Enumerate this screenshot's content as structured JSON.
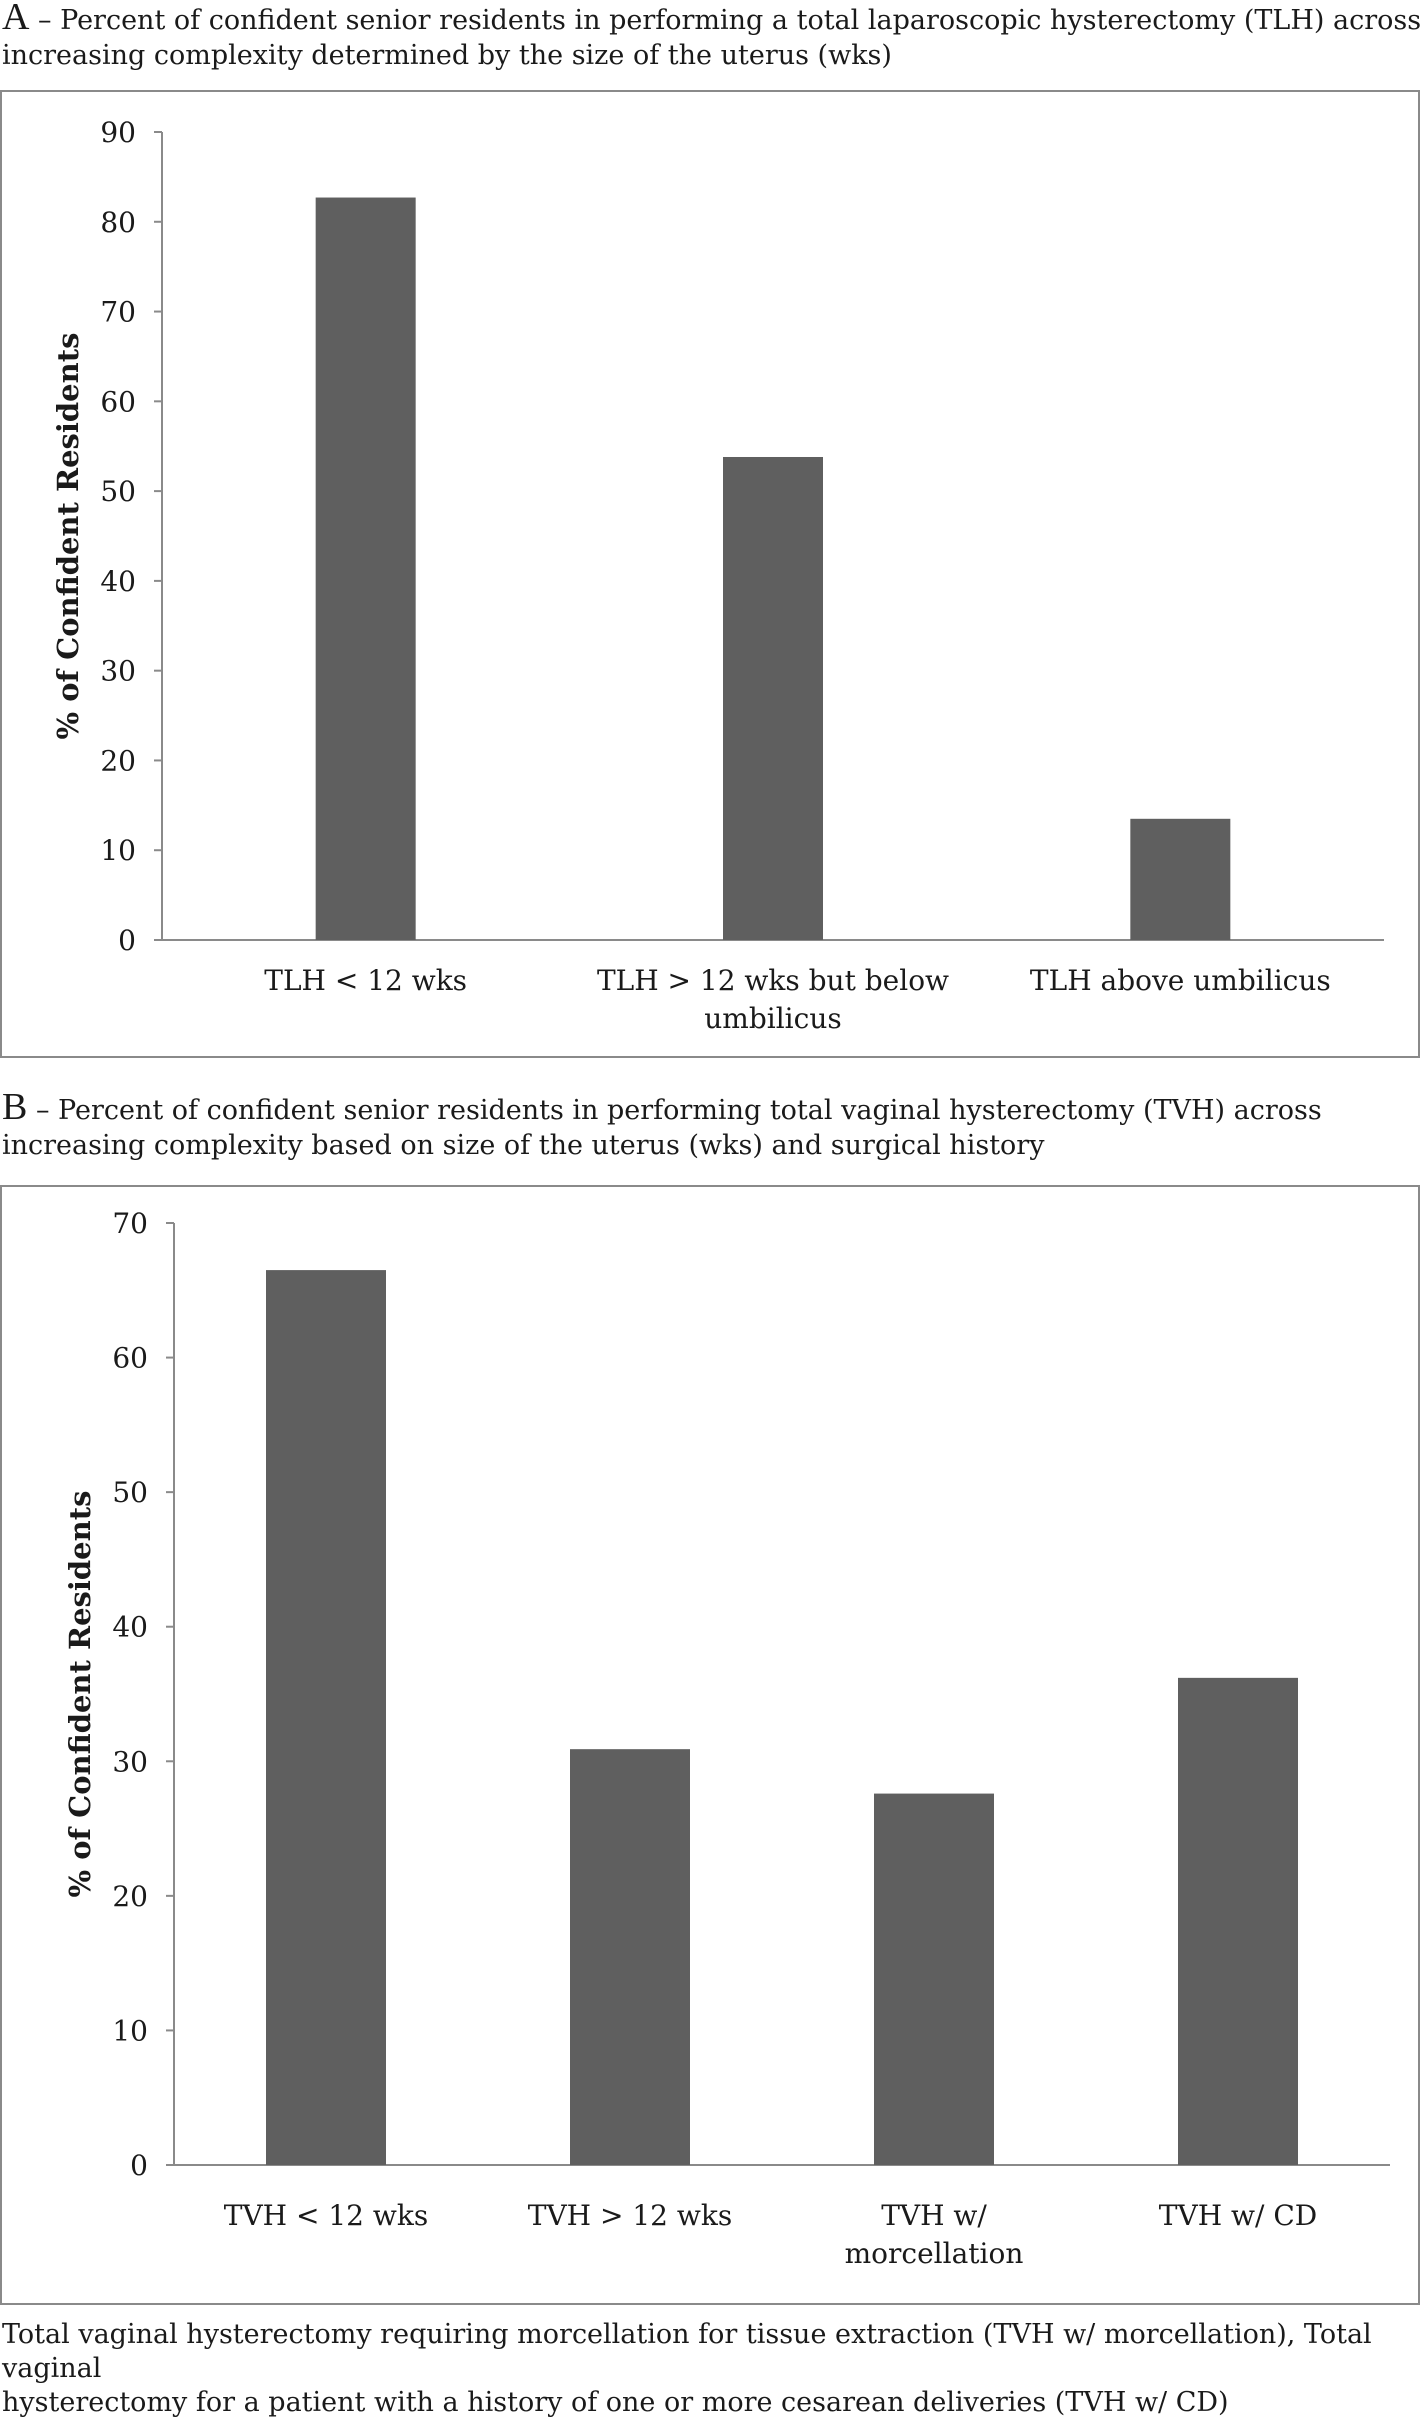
{
  "chart_data": [
    {
      "id": "A",
      "type": "bar",
      "caption_letter": "A",
      "caption_line1": " – Percent of confident senior residents in performing a total laparoscopic hysterectomy (TLH) across",
      "caption_line2": "increasing complexity determined by the size of the uterus (wks)",
      "ylabel": "% of Confident Residents",
      "xlabel": "",
      "ylim": [
        0,
        90
      ],
      "yticks": [
        0,
        10,
        20,
        30,
        40,
        50,
        60,
        70,
        80,
        90
      ],
      "categories": [
        [
          "TLH < 12 wks"
        ],
        [
          "TLH > 12 wks but below",
          "umbilicus"
        ],
        [
          "TLH above umbilicus"
        ]
      ],
      "values": [
        82.7,
        53.8,
        13.5
      ],
      "grid": false,
      "legend": "none",
      "bar_color": "#5f5f5f"
    },
    {
      "id": "B",
      "type": "bar",
      "caption_letter": "B",
      "caption_line1": " – Percent of confident senior residents in performing total vaginal hysterectomy (TVH) across",
      "caption_line2": "increasing complexity based on size of the uterus (wks) and surgical history",
      "ylabel": "% of Confident Residents",
      "xlabel": "",
      "ylim": [
        0,
        70
      ],
      "yticks": [
        0,
        10,
        20,
        30,
        40,
        50,
        60,
        70
      ],
      "categories": [
        [
          "TVH < 12 wks"
        ],
        [
          "TVH > 12 wks"
        ],
        [
          "TVH w/",
          "morcellation"
        ],
        [
          "TVH w/ CD"
        ]
      ],
      "values": [
        66.5,
        30.9,
        27.6,
        36.2
      ],
      "grid": false,
      "legend": "none",
      "bar_color": "#5f5f5f"
    }
  ],
  "footnote": {
    "line1": "Total vaginal hysterectomy requiring morcellation for tissue extraction (TVH w/ morcellation), Total vaginal",
    "line2": "hysterectomy for a patient with a history of one or more cesarean deliveries (TVH w/ CD)"
  }
}
